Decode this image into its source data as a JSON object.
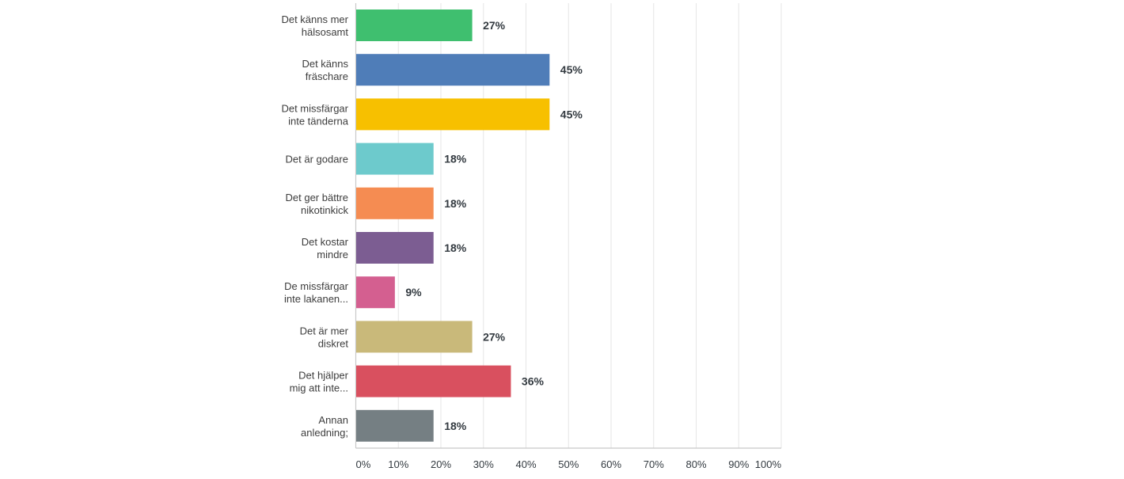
{
  "chart_data": {
    "type": "bar",
    "orientation": "horizontal",
    "title": "",
    "xlabel": "",
    "ylabel": "",
    "xlim": [
      0,
      100
    ],
    "grid": true,
    "tick_values": [
      0,
      10,
      20,
      30,
      40,
      50,
      60,
      70,
      80,
      90,
      100
    ],
    "tick_labels": [
      "0%",
      "10%",
      "20%",
      "30%",
      "40%",
      "50%",
      "60%",
      "70%",
      "80%",
      "90%",
      "100%"
    ],
    "categories": [
      [
        "Det känns mer",
        "hälsosamt"
      ],
      [
        "Det känns",
        "fräschare"
      ],
      [
        "Det missfärgar",
        "inte tänderna"
      ],
      [
        "Det är godare"
      ],
      [
        "Det ger bättre",
        "nikotinkick"
      ],
      [
        "Det kostar",
        "mindre"
      ],
      [
        "De missfärgar",
        "inte lakanen..."
      ],
      [
        "Det är mer",
        "diskret"
      ],
      [
        "Det hjälper",
        "mig att inte..."
      ],
      [
        "Annan",
        "anledning;"
      ]
    ],
    "values": [
      27.27,
      45.45,
      45.45,
      18.18,
      18.18,
      18.18,
      9.09,
      27.27,
      36.36,
      18.18
    ],
    "value_labels": [
      "27%",
      "45%",
      "45%",
      "18%",
      "18%",
      "18%",
      "9%",
      "27%",
      "36%",
      "18%"
    ],
    "colors": [
      "#3fbf6f",
      "#4f7db8",
      "#f7c000",
      "#6dcacc",
      "#f58c52",
      "#7c5d92",
      "#d45f90",
      "#c9b97a",
      "#d9505f",
      "#757f83"
    ]
  }
}
